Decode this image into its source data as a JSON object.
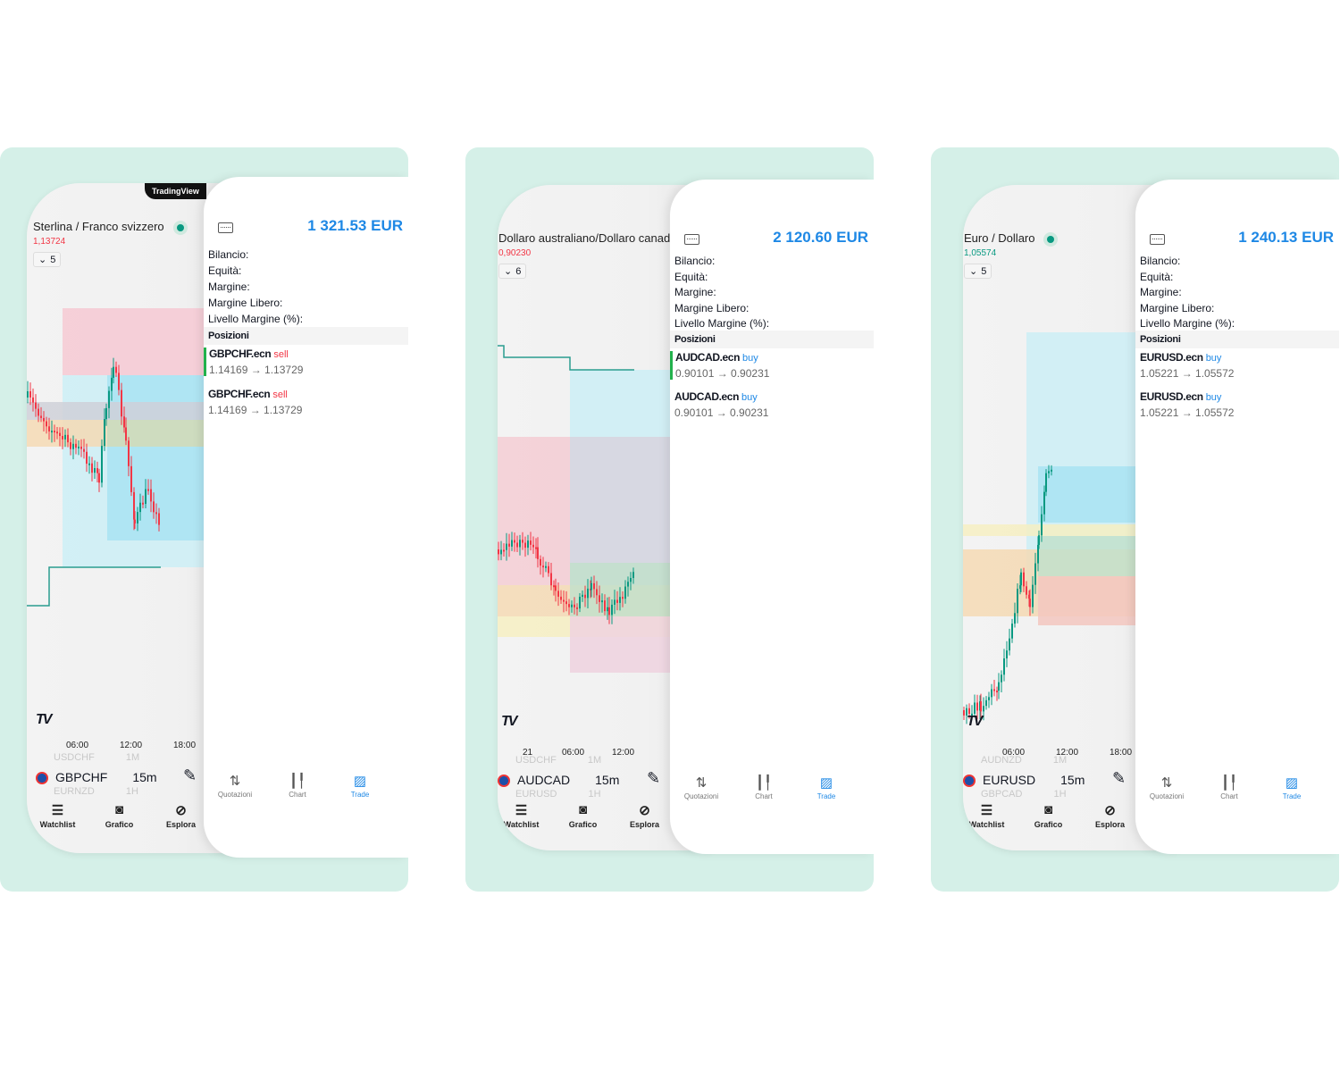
{
  "colors": {
    "background": "#d5f0e8",
    "accent": "#1e88e5",
    "sell": "#f23645",
    "buy": "#1e88e5",
    "up": "#089981",
    "down": "#f23645"
  },
  "trade_labels": [
    "Bilancio:",
    "Equità:",
    "Margine:",
    "Margine Libero:",
    "Livello Margine (%):"
  ],
  "positions_header": "Posizioni",
  "chart_nav": [
    {
      "label": "Watchlist",
      "icon": "watchlist-icon"
    },
    {
      "label": "Grafico",
      "icon": "chart-icon"
    },
    {
      "label": "Esplora",
      "icon": "compass-icon"
    }
  ],
  "trade_nav": [
    {
      "label": "Quotazioni",
      "icon": "quotes-icon"
    },
    {
      "label": "Chart",
      "icon": "candles-icon"
    },
    {
      "label": "Trade",
      "icon": "trade-icon",
      "active": true
    }
  ],
  "panels": [
    {
      "badge": "TradingView",
      "title": "Sterlina / Franco svizzero",
      "live": true,
      "price": "1,13724",
      "price_color": "#f23645",
      "chip": "5",
      "axis": [
        "06:00",
        "12:00",
        "18:00"
      ],
      "symbol": "GBPCHF",
      "timeframe": "15m",
      "above": [
        "USDCHF",
        "1M"
      ],
      "below": [
        "EURNZD",
        "1H"
      ],
      "amount": "1 321.53 EUR",
      "positions": [
        {
          "symbol": "GBPCHF.ecn",
          "side": "sell",
          "range": "1.14169 → 1.13729"
        },
        {
          "symbol": "GBPCHF.ecn",
          "side": "sell",
          "range": "1.14169 → 1.13729"
        }
      ]
    },
    {
      "title": "Dollaro australiano/Dollaro canad",
      "live": false,
      "price": "0,90230",
      "price_color": "#f23645",
      "chip": "6",
      "axis": [
        "21",
        "06:00",
        "12:00"
      ],
      "symbol": "AUDCAD",
      "timeframe": "15m",
      "above": [
        "USDCHF",
        "1M"
      ],
      "below": [
        "EURUSD",
        "1H"
      ],
      "amount": "2 120.60 EUR",
      "positions": [
        {
          "symbol": "AUDCAD.ecn",
          "side": "buy",
          "range": "0.90101 → 0.90231"
        },
        {
          "symbol": "AUDCAD.ecn",
          "side": "buy",
          "range": "0.90101 → 0.90231"
        }
      ]
    },
    {
      "title": "Euro / Dollaro",
      "live": true,
      "price": "1,05574",
      "price_color": "#089981",
      "chip": "5",
      "axis": [
        "06:00",
        "12:00",
        "18:00"
      ],
      "symbol": "EURUSD",
      "timeframe": "15m",
      "above": [
        "AUDNZD",
        "1M"
      ],
      "below": [
        "GBPCAD",
        "1H"
      ],
      "amount": "1 240.13 EUR",
      "positions": [
        {
          "symbol": "EURUSD.ecn",
          "side": "buy",
          "range": "1.05221 → 1.05572"
        },
        {
          "symbol": "EURUSD.ecn",
          "side": "buy",
          "range": "1.05221 → 1.05572"
        }
      ]
    }
  ]
}
